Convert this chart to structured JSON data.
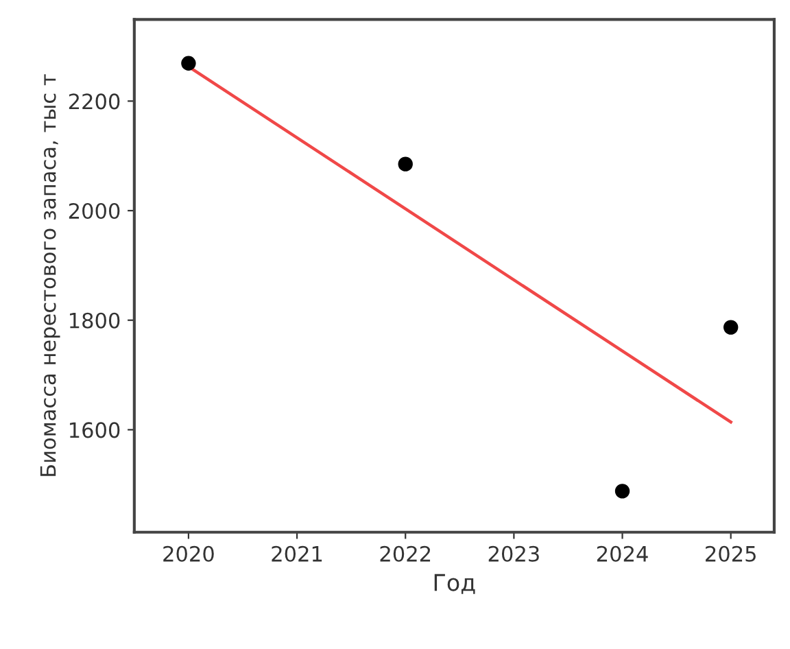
{
  "chart_data": {
    "type": "scatter",
    "xlabel": "Год",
    "ylabel": "Биомасса нерестового запаса, тыс т",
    "series": [
      {
        "color": "#000000",
        "marker": "circle",
        "x": [
          2020,
          2022,
          2024,
          2025
        ],
        "values": [
          2269,
          2085,
          1488,
          1787
        ]
      },
      {
        "type": "line",
        "color": "#f04848",
        "marker": "none",
        "line_style": "solid",
        "x": [
          2020,
          2025
        ],
        "values": [
          2263,
          1614
        ]
      }
    ],
    "xlim": [
      2019.5,
      2025.4
    ],
    "ylim": [
      1413,
      2349
    ],
    "xticks": [
      2020,
      2021,
      2022,
      2023,
      2024,
      2025
    ],
    "yticks": [
      1600,
      1800,
      2000,
      2200
    ],
    "grid": false,
    "legend": false
  }
}
